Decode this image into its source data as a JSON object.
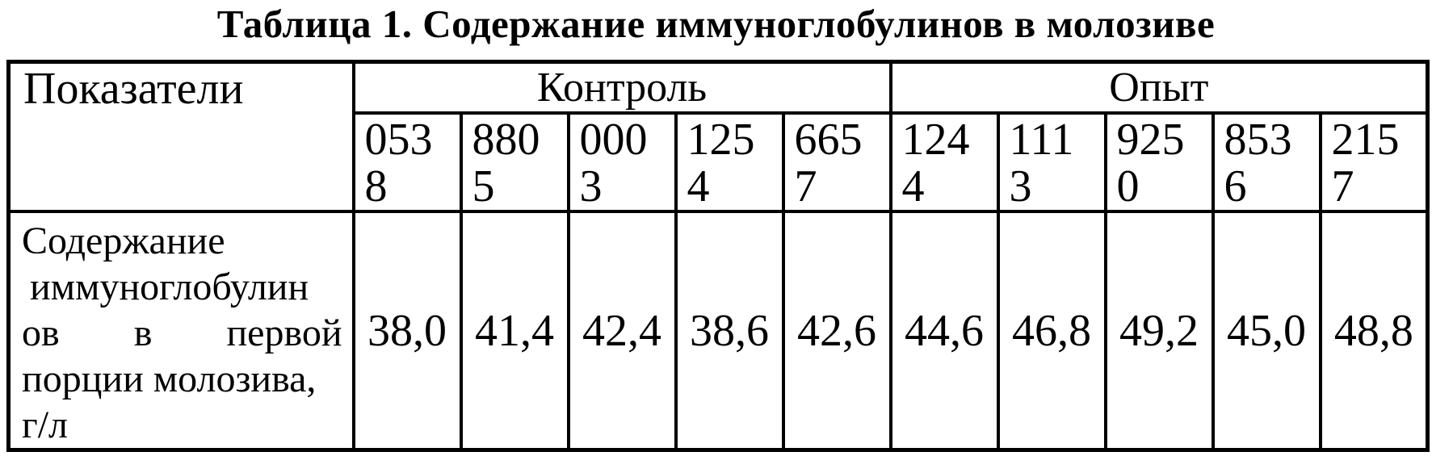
{
  "title": "Таблица 1. Содержание иммуноглобулинов в молозиве",
  "table": {
    "indicator_header": "Показатели",
    "indicator": {
      "text": "Содержание иммуноглобулинов в первой порции молозива, г/л",
      "lines": [
        "Содержание",
        "иммуноглобулин",
        "ов в первой",
        "порции молозива,",
        "г/л"
      ]
    },
    "groups": [
      {
        "label": "Контроль",
        "animal_ids": [
          "0538",
          "8805",
          "0003",
          "1254",
          "6657"
        ],
        "values": [
          "38,0",
          "41,4",
          "42,4",
          "38,6",
          "42,6"
        ]
      },
      {
        "label": "Опыт",
        "animal_ids": [
          "1244",
          "1113",
          "9250",
          "8536",
          "2157"
        ],
        "values": [
          "44,6",
          "46,8",
          "49,2",
          "45,0",
          "48,8"
        ]
      }
    ]
  }
}
